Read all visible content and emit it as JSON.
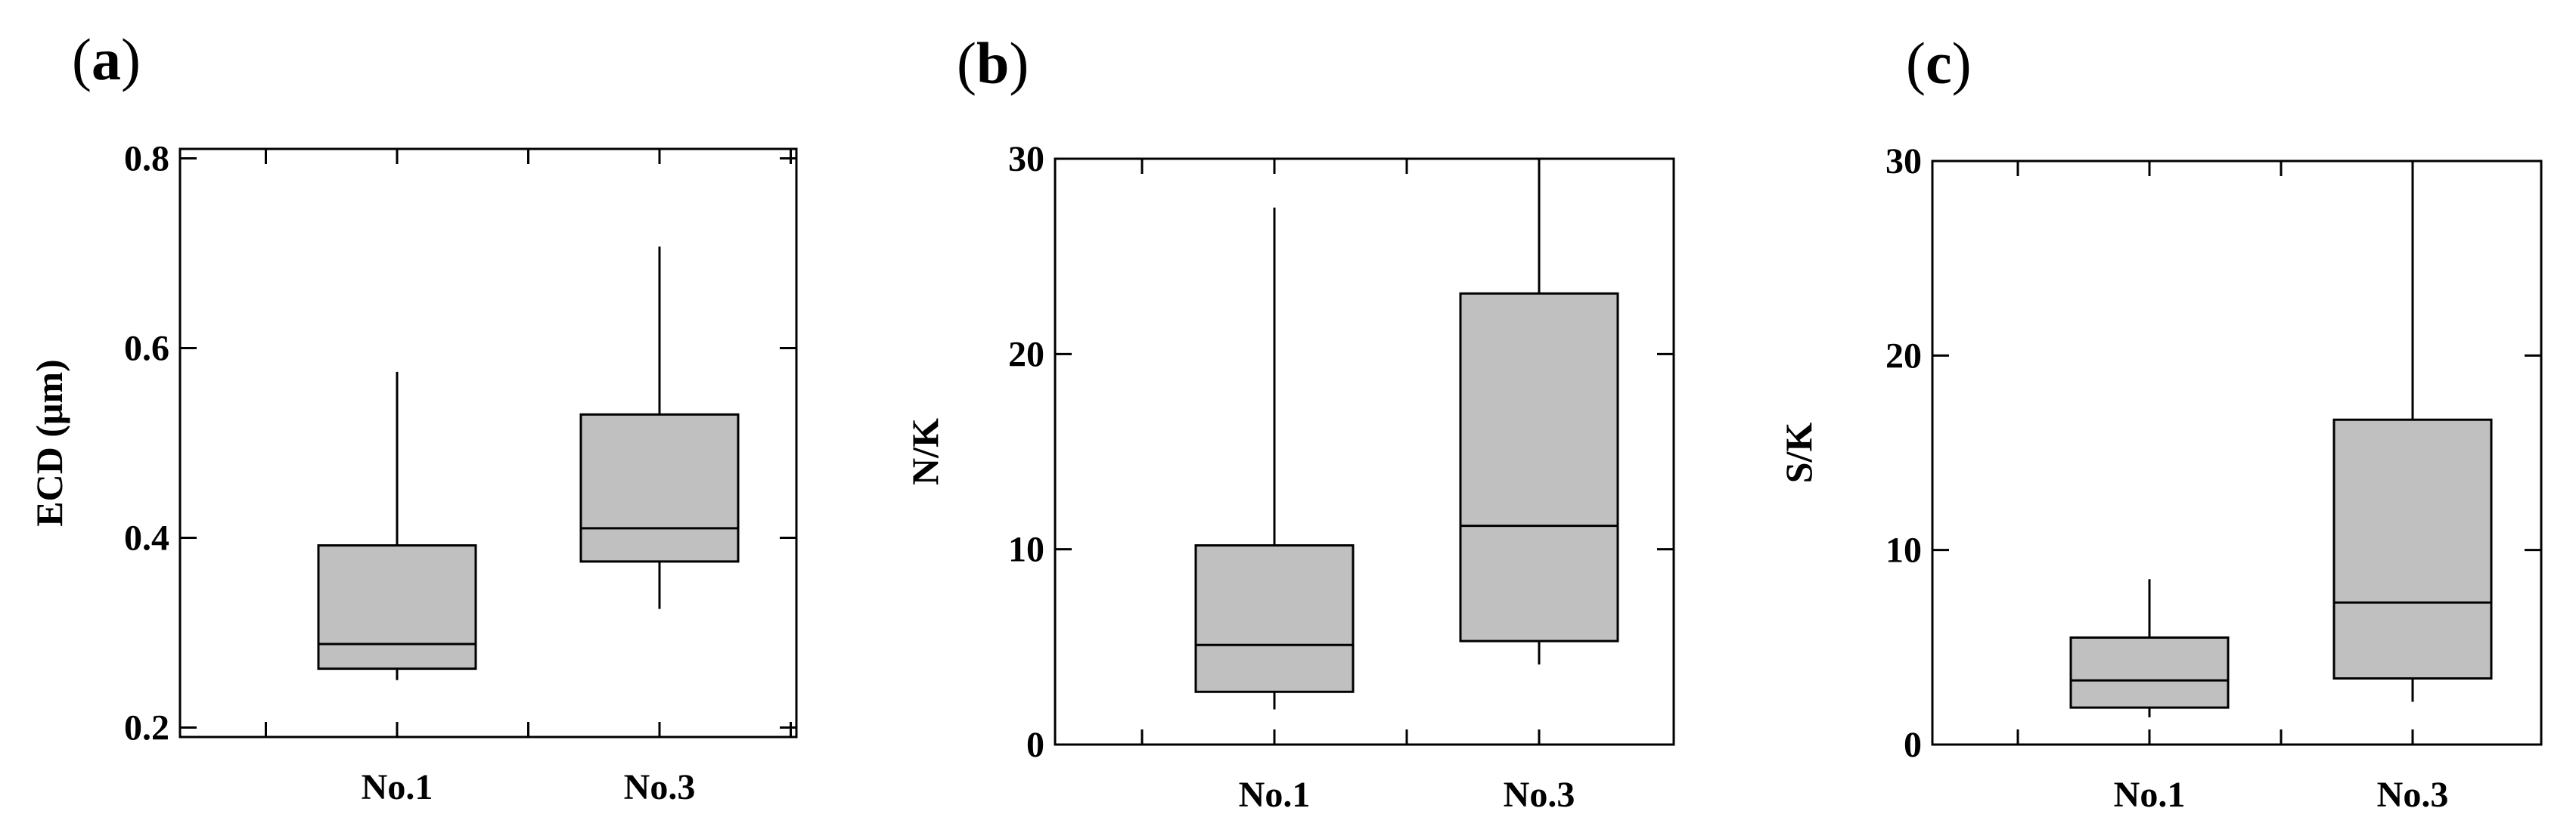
{
  "chart_data": [
    {
      "type": "box",
      "panel_label": "a",
      "xlabel": "",
      "ylabel": "ECD (μm)",
      "ylim": [
        0.19,
        0.81
      ],
      "yticks": [
        0.2,
        0.4,
        0.6,
        0.8
      ],
      "ytick_labels": [
        "0.2",
        "0.4",
        "0.6",
        "0.8"
      ],
      "categories": [
        "No.1",
        "No.3"
      ],
      "boxes": [
        {
          "category": "No.1",
          "whisker_low": 0.25,
          "q1": 0.262,
          "median": 0.288,
          "q3": 0.392,
          "whisker_high": 0.575
        },
        {
          "category": "No.3",
          "whisker_low": 0.325,
          "q1": 0.375,
          "median": 0.41,
          "q3": 0.53,
          "whisker_high": 0.707
        }
      ]
    },
    {
      "type": "box",
      "panel_label": "b",
      "xlabel": "",
      "ylabel": "N/K",
      "ylim": [
        0,
        30
      ],
      "yticks": [
        0,
        10,
        20,
        30
      ],
      "ytick_labels": [
        "0",
        "10",
        "20",
        "30"
      ],
      "categories": [
        "No.1",
        "No.3"
      ],
      "boxes": [
        {
          "category": "No.1",
          "whisker_low": 1.8,
          "q1": 2.7,
          "median": 5.1,
          "q3": 10.2,
          "whisker_high": 27.5
        },
        {
          "category": "No.3",
          "whisker_low": 4.1,
          "q1": 5.3,
          "median": 11.2,
          "q3": 23.1,
          "whisker_high": 30
        }
      ]
    },
    {
      "type": "box",
      "panel_label": "c",
      "xlabel": "",
      "ylabel": "S/K",
      "ylim": [
        0,
        30
      ],
      "yticks": [
        0,
        10,
        20,
        30
      ],
      "ytick_labels": [
        "0",
        "10",
        "20",
        "30"
      ],
      "categories": [
        "No.1",
        "No.3"
      ],
      "boxes": [
        {
          "category": "No.1",
          "whisker_low": 1.4,
          "q1": 1.9,
          "median": 3.3,
          "q3": 5.5,
          "whisker_high": 8.5
        },
        {
          "category": "No.3",
          "whisker_low": 2.2,
          "q1": 3.4,
          "median": 7.3,
          "q3": 16.7,
          "whisker_high": 30
        }
      ]
    }
  ]
}
